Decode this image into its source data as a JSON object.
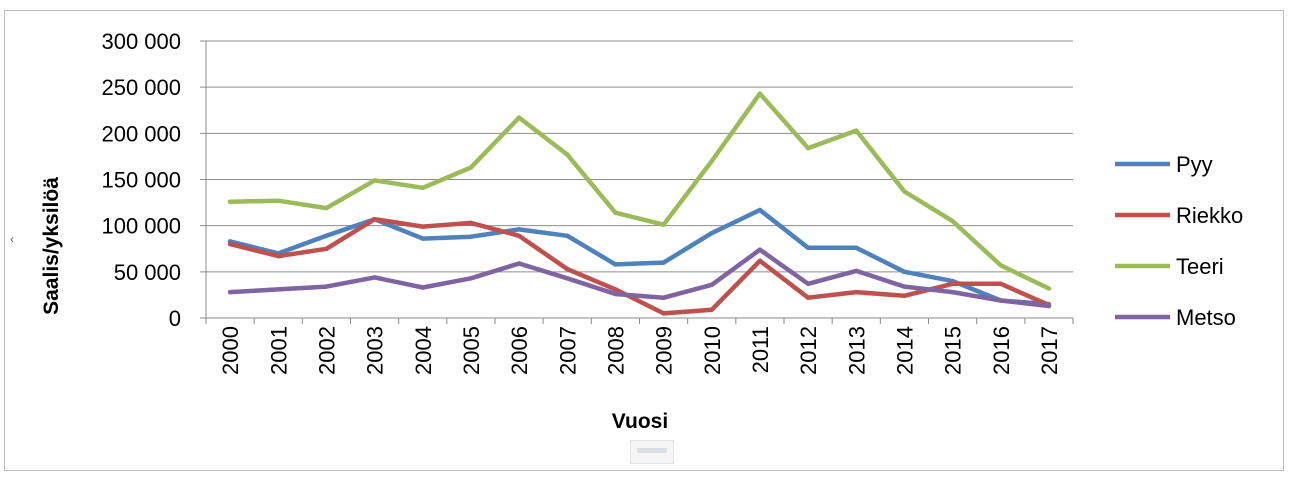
{
  "chart_data": {
    "type": "line",
    "title": "",
    "xlabel": "Vuosi",
    "ylabel": "Saalis/yksilöä",
    "ylim": [
      0,
      300000
    ],
    "yticks": [
      0,
      50000,
      100000,
      150000,
      200000,
      250000,
      300000
    ],
    "ytick_labels": [
      "0",
      "50 000",
      "100 000",
      "150 000",
      "200 000",
      "250 000",
      "300 000"
    ],
    "grid": true,
    "legend": "right",
    "categories": [
      "2000",
      "2001",
      "2002",
      "2003",
      "2004",
      "2005",
      "2006",
      "2007",
      "2008",
      "2009",
      "2010",
      "2011",
      "2012",
      "2013",
      "2014",
      "2015",
      "2016",
      "2017"
    ],
    "series": [
      {
        "name": "Pyy",
        "color": "#4f81bd",
        "values": [
          83000,
          70000,
          89000,
          107000,
          86000,
          88000,
          96000,
          89000,
          58000,
          60000,
          92000,
          117000,
          76000,
          76000,
          50000,
          40000,
          19000,
          15000
        ]
      },
      {
        "name": "Riekko",
        "color": "#c0504d",
        "values": [
          80000,
          67000,
          75000,
          107000,
          99000,
          103000,
          89000,
          53000,
          31000,
          5000,
          9000,
          62000,
          22000,
          28000,
          24000,
          37000,
          37000,
          14000
        ]
      },
      {
        "name": "Teeri",
        "color": "#9bbb59",
        "values": [
          126000,
          127000,
          119000,
          149000,
          141000,
          163000,
          217000,
          177000,
          114000,
          101000,
          170000,
          243000,
          184000,
          203000,
          137000,
          105000,
          57000,
          32000
        ]
      },
      {
        "name": "Metso",
        "color": "#8064a2",
        "values": [
          28000,
          31000,
          34000,
          44000,
          33000,
          43000,
          59000,
          43000,
          26000,
          22000,
          36000,
          74000,
          37000,
          51000,
          34000,
          28000,
          19000,
          13000
        ]
      }
    ]
  }
}
